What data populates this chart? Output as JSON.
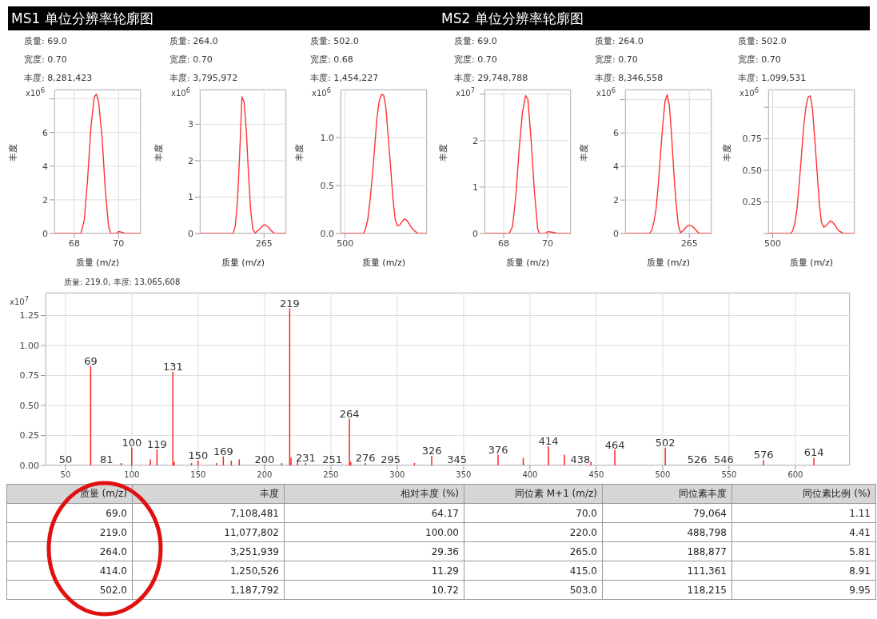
{
  "chart_data": [
    {
      "type": "line",
      "title": "MS1 单位分辨率轮廓图",
      "annotations": [
        "质量: 69.0",
        "宽度: 0.70",
        "丰度: 8,281,423",
        "x10$^{6}$"
      ],
      "xlabel": "质量 (m/z)",
      "ylabel": "丰度",
      "color": "#ff3333",
      "grid": true,
      "x": [
        67.1,
        68.0,
        68.3,
        68.45,
        68.6,
        68.75,
        68.9,
        69.0,
        69.1,
        69.25,
        69.4,
        69.55,
        69.65,
        69.9,
        70.0,
        70.15,
        70.3,
        71.0
      ],
      "values": [
        0,
        0,
        0,
        0.8,
        3.2,
        6.3,
        8.1,
        8.28,
        7.8,
        5.8,
        2.6,
        0.4,
        0,
        0,
        0.12,
        0.08,
        0,
        0
      ],
      "xlim": [
        67.1,
        71.0
      ],
      "ylim": [
        0,
        8.55
      ],
      "xticks": [
        68,
        70
      ],
      "yticks": [
        0,
        2,
        4,
        6,
        {
          "value": 8,
          "label": null
        }
      ]
    },
    {
      "type": "line",
      "annotations": [
        "质量: 264.0",
        "宽度: 0.70",
        "丰度: 3,795,972",
        "x10$^{6}$"
      ],
      "xlabel": "质量 (m/z)",
      "ylabel": "丰度",
      "color": "#ff3333",
      "grid": true,
      "categories": [
        null,
        null,
        null,
        null,
        null,
        null,
        null,
        null,
        null,
        null,
        null,
        null,
        null,
        null,
        null,
        null,
        null,
        null,
        null,
        null,
        null,
        null,
        null,
        null,
        null,
        null,
        null,
        null,
        null,
        "265",
        null,
        null,
        null,
        null,
        null,
        null,
        null,
        null,
        null,
        null
      ],
      "values": [
        0,
        0,
        0,
        0,
        0,
        0,
        0,
        0,
        0,
        0,
        0,
        0,
        0,
        0,
        0,
        0,
        0.2,
        0.9,
        2.2,
        3.75,
        3.6,
        2.8,
        1.6,
        0.6,
        0.1,
        0.02,
        0.07,
        0.12,
        0.19,
        0.24,
        0.22,
        0.17,
        0.09,
        0.04,
        0,
        0,
        0,
        0,
        0,
        0
      ],
      "ylim": [
        0,
        3.95
      ],
      "yticks": [
        0,
        1,
        2,
        3
      ]
    },
    {
      "type": "line",
      "annotations": [
        "质量: 502.0",
        "宽度: 0.68",
        "丰度: 1,454,227",
        "x10$^{6}$"
      ],
      "xlabel": "质量 (m/z)",
      "ylabel": "丰度",
      "color": "#ff3333",
      "grid": true,
      "categories": [
        null,
        null,
        "500",
        null,
        null,
        null,
        null,
        null,
        null,
        null,
        null,
        null,
        null,
        null,
        null,
        null,
        null,
        null,
        null,
        null,
        null,
        null,
        null,
        null,
        null,
        null,
        null,
        null,
        null,
        null,
        null,
        null,
        null,
        null,
        null,
        null,
        null,
        null,
        null
      ],
      "values": [
        0,
        0,
        0,
        0,
        0,
        0,
        0,
        0,
        0,
        0,
        0,
        0.05,
        0.15,
        0.35,
        0.6,
        0.9,
        1.2,
        1.38,
        1.45,
        1.44,
        1.3,
        1.0,
        0.7,
        0.38,
        0.15,
        0.08,
        0.09,
        0.12,
        0.15,
        0.14,
        0.11,
        0.07,
        0.04,
        0.02,
        0,
        0,
        0,
        0,
        0
      ],
      "ylim": [
        0,
        1.5
      ],
      "yticks": [
        {
          "value": 0,
          "label": "0.0"
        },
        0.5,
        {
          "value": 1,
          "label": "1.0"
        }
      ]
    },
    {
      "type": "line",
      "title": "MS2 单位分辨率轮廓图",
      "annotations": [
        "质量: 69.0",
        "宽度: 0.70",
        "丰度: 29,748,788",
        "x10$^{7}$"
      ],
      "xlabel": "质量 (m/z)",
      "ylabel": "丰度",
      "color": "#ff3333",
      "grid": true,
      "x": [
        67.12,
        68.25,
        68.4,
        68.55,
        68.7,
        68.85,
        69.0,
        69.1,
        69.25,
        69.4,
        69.55,
        69.62,
        69.9,
        70.0,
        70.2,
        70.45,
        71.06
      ],
      "values": [
        0,
        0,
        0.15,
        0.8,
        1.8,
        2.6,
        2.97,
        2.9,
        2.0,
        0.9,
        0.1,
        0,
        0,
        0.04,
        0.03,
        0,
        0
      ],
      "xlim": [
        67.12,
        71.06
      ],
      "ylim": [
        0,
        3.1
      ],
      "xticks": [
        68,
        70
      ],
      "yticks": [
        0,
        1,
        2,
        {
          "value": 3,
          "label": null
        }
      ]
    },
    {
      "type": "line",
      "annotations": [
        "质量: 264.0",
        "宽度: 0.70",
        "丰度: 8,346,558",
        "x10$^{6}$"
      ],
      "xlabel": "质量 (m/z)",
      "ylabel": "丰度",
      "color": "#ff3333",
      "grid": true,
      "categories": [
        null,
        null,
        null,
        null,
        null,
        null,
        null,
        null,
        null,
        null,
        null,
        null,
        null,
        null,
        null,
        null,
        null,
        null,
        null,
        null,
        null,
        null,
        null,
        null,
        null,
        null,
        null,
        null,
        null,
        "265",
        null,
        null,
        null,
        null,
        null,
        null,
        null,
        null,
        null,
        null
      ],
      "values": [
        0,
        0,
        0,
        0,
        0,
        0,
        0,
        0,
        0,
        0,
        0,
        0,
        0.2,
        0.7,
        1.5,
        3.0,
        4.8,
        6.5,
        7.9,
        8.3,
        7.6,
        5.8,
        3.6,
        1.8,
        0.5,
        0.05,
        0.15,
        0.3,
        0.45,
        0.5,
        0.45,
        0.35,
        0.2,
        0.05,
        0,
        0,
        0,
        0,
        0,
        0
      ],
      "ylim": [
        0,
        8.6
      ],
      "yticks": [
        0,
        2,
        4,
        6,
        {
          "value": 8,
          "label": null
        }
      ]
    },
    {
      "type": "line",
      "annotations": [
        "质量: 502.0",
        "宽度: 0.70",
        "丰度: 1,099,531",
        "x10$^{6}$"
      ],
      "xlabel": "质量 (m/z)",
      "ylabel": "丰度",
      "color": "#ff3333",
      "grid": true,
      "categories": [
        null,
        null,
        "500",
        null,
        null,
        null,
        null,
        null,
        null,
        null,
        null,
        null,
        null,
        null,
        null,
        null,
        null,
        null,
        null,
        null,
        null,
        null,
        null,
        null,
        null,
        null,
        null,
        null,
        null,
        null,
        null,
        null,
        null,
        null,
        null,
        null,
        null,
        null,
        null,
        null
      ],
      "values": [
        0,
        0,
        0,
        0,
        0,
        0,
        0,
        0,
        0,
        0,
        0,
        0.02,
        0.08,
        0.2,
        0.4,
        0.62,
        0.85,
        1.0,
        1.08,
        1.09,
        0.98,
        0.75,
        0.5,
        0.25,
        0.09,
        0.05,
        0.06,
        0.08,
        0.1,
        0.09,
        0.07,
        0.04,
        0.02,
        0.01,
        0,
        0,
        0,
        0,
        0,
        0
      ],
      "ylim": [
        0,
        1.14
      ],
      "yticks": [
        {
          "value": 0,
          "label": null
        },
        0.25,
        {
          "value": 0.5,
          "label": "0.50"
        },
        0.75,
        {
          "value": 1,
          "label": null
        }
      ]
    },
    {
      "type": "bar",
      "color": "#ff2222",
      "grid": true,
      "x": [
        50,
        69,
        81,
        92,
        100,
        114,
        119,
        131,
        132,
        145,
        150,
        164,
        169,
        175,
        181,
        200,
        213,
        219,
        220,
        225,
        231,
        251,
        264,
        265,
        276,
        295,
        313,
        326,
        345,
        376,
        395,
        414,
        426,
        438,
        446,
        464,
        502,
        526,
        546,
        576,
        614
      ],
      "values": [
        0.005,
        0.83,
        0.005,
        0.02,
        0.15,
        0.05,
        0.135,
        0.78,
        0.03,
        0.02,
        0.04,
        0.02,
        0.075,
        0.04,
        0.05,
        0.005,
        0.02,
        1.31,
        0.065,
        0.04,
        0.02,
        0.005,
        0.39,
        0.03,
        0.02,
        0.005,
        0.02,
        0.08,
        0.005,
        0.088,
        0.064,
        0.16,
        0.088,
        0.005,
        0.03,
        0.13,
        0.148,
        0.005,
        0.005,
        0.045,
        0.064
      ],
      "xlim": [
        35,
        641
      ],
      "ylim": [
        0,
        1.44
      ],
      "xticks": [
        50,
        100,
        150,
        200,
        250,
        300,
        350,
        400,
        450,
        500,
        550,
        600
      ],
      "yticks": [
        {
          "value": 0,
          "label": "0.00"
        },
        0.25,
        {
          "value": 0.5,
          "label": "0.50"
        },
        0.75,
        {
          "value": 1,
          "label": "1.00"
        },
        1.25
      ],
      "annotations": [
        "质量: 219.0, 丰度: 13,065,608",
        "x10$^{7}$",
        {
          "text": "50",
          "x": 50,
          "y": 0.005
        },
        {
          "text": "69",
          "x": 69,
          "y": 0.83
        },
        {
          "text": "81",
          "x": 81,
          "y": 0.005
        },
        {
          "text": "100",
          "x": 100,
          "y": 0.15
        },
        {
          "text": "119",
          "x": 119,
          "y": 0.135
        },
        {
          "text": "131",
          "x": 131,
          "y": 0.78
        },
        {
          "text": "150",
          "x": 150,
          "y": 0.04
        },
        {
          "text": "169",
          "x": 169,
          "y": 0.075
        },
        {
          "text": "200",
          "x": 200,
          "y": 0.005
        },
        {
          "text": "219",
          "x": 219,
          "y": 1.31
        },
        {
          "text": "231",
          "x": 231,
          "y": 0.02
        },
        {
          "text": "251",
          "x": 251,
          "y": 0.005
        },
        {
          "text": "264",
          "x": 264,
          "y": 0.39
        },
        {
          "text": "276",
          "x": 276,
          "y": 0.02
        },
        {
          "text": "295",
          "x": 295,
          "y": 0.005
        },
        {
          "text": "326",
          "x": 326,
          "y": 0.08
        },
        {
          "text": "345",
          "x": 345,
          "y": 0.005
        },
        {
          "text": "376",
          "x": 376,
          "y": 0.088
        },
        {
          "text": "414",
          "x": 414,
          "y": 0.16
        },
        {
          "text": "438",
          "x": 438,
          "y": 0.005
        },
        {
          "text": "464",
          "x": 464,
          "y": 0.13
        },
        {
          "text": "502",
          "x": 502,
          "y": 0.148
        },
        {
          "text": "526",
          "x": 526,
          "y": 0.005
        },
        {
          "text": "546",
          "x": 546,
          "y": 0.005
        },
        {
          "text": "576",
          "x": 576,
          "y": 0.045
        },
        {
          "text": "614",
          "x": 614,
          "y": 0.064
        }
      ]
    },
    {
      "type": "other",
      "categories": [
        "质量 (m/z)",
        "丰度",
        "相对丰度 (%)",
        "同位素 M+1 (m/z)",
        "同位素丰度",
        "同位素比例 (%)"
      ],
      "cell_labels": [
        [
          "69.0",
          "7,108,481",
          "64.17",
          "70.0",
          "79,064",
          "1.11"
        ],
        [
          "219.0",
          "11,077,802",
          "100.00",
          "220.0",
          "488,798",
          "4.41"
        ],
        [
          "264.0",
          "3,251,939",
          "29.36",
          "265.0",
          "188,877",
          "5.81"
        ],
        [
          "414.0",
          "1,250,526",
          "11.29",
          "415.0",
          "111,361",
          "8.91"
        ],
        [
          "502.0",
          "1,187,792",
          "10.72",
          "503.0",
          "118,215",
          "9.95"
        ]
      ]
    }
  ]
}
